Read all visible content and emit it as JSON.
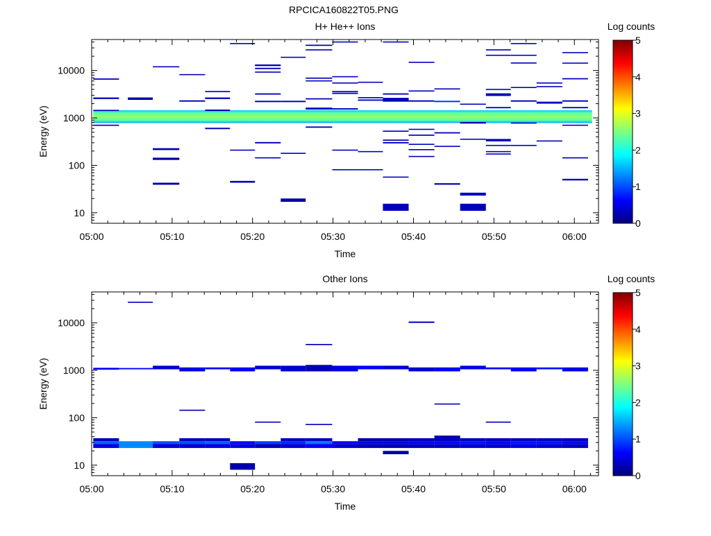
{
  "figure_title": "RPCICA160822T05.PNG",
  "palette": [
    "#00007f",
    "#0000ff",
    "#007fff",
    "#00ffff",
    "#7fff7f",
    "#ffff00",
    "#ff7f00",
    "#ff0000",
    "#7f0000"
  ],
  "chart_data": [
    {
      "type": "heatmap",
      "title": "H+ He++ Ions",
      "xlabel": "Time",
      "ylabel": "Energy (eV)",
      "x_ticks": [
        "05:00",
        "05:10",
        "05:20",
        "05:30",
        "05:40",
        "05:50",
        "06:00"
      ],
      "x_range_minutes": [
        0,
        63
      ],
      "y_scale": "log",
      "y_range": [
        6,
        45000
      ],
      "y_ticks": [
        "10",
        "100",
        "1000",
        "10000"
      ],
      "colorbar": {
        "label": "Log counts",
        "range": [
          0,
          5
        ],
        "ticks": [
          "0",
          "1",
          "2",
          "3",
          "4",
          "5"
        ]
      },
      "band": {
        "e_min": 780,
        "e_max": 1450,
        "value": 2.6,
        "t_start": 0.2,
        "t_end": 62.2
      },
      "cells": [
        [
          0.2,
          3.4,
          2500,
          2700,
          0.3
        ],
        [
          0.2,
          3.4,
          6400,
          6800,
          0.3
        ],
        [
          0.2,
          3.4,
          1400,
          1480,
          0.3
        ],
        [
          0.2,
          3.4,
          680,
          720,
          0.3
        ],
        [
          4.5,
          7.6,
          2400,
          2700,
          0.2
        ],
        [
          7.6,
          10.9,
          11800,
          12300,
          0.3
        ],
        [
          7.6,
          10.9,
          210,
          230,
          0.2
        ],
        [
          7.6,
          10.9,
          130,
          145,
          0.2
        ],
        [
          7.6,
          10.9,
          39,
          43,
          0.2
        ],
        [
          10.9,
          14.1,
          8000,
          8400,
          0.3
        ],
        [
          10.9,
          14.1,
          2200,
          2350,
          0.3
        ],
        [
          14.1,
          17.2,
          3500,
          3700,
          0.3
        ],
        [
          14.1,
          17.2,
          2500,
          2700,
          0.3
        ],
        [
          14.1,
          17.2,
          1400,
          1500,
          0.3
        ],
        [
          14.1,
          17.2,
          580,
          620,
          0.3
        ],
        [
          17.2,
          20.3,
          36000,
          38000,
          0.3
        ],
        [
          17.2,
          20.3,
          205,
          215,
          0.3
        ],
        [
          17.2,
          20.3,
          43,
          47,
          0.3
        ],
        [
          20.3,
          23.5,
          12400,
          13400,
          0.3
        ],
        [
          20.3,
          23.5,
          10700,
          11400,
          0.3
        ],
        [
          20.3,
          23.5,
          9000,
          9500,
          0.3
        ],
        [
          20.3,
          23.5,
          3100,
          3300,
          0.3
        ],
        [
          20.3,
          23.5,
          2150,
          2300,
          0.3
        ],
        [
          20.3,
          23.5,
          290,
          310,
          0.3
        ],
        [
          20.3,
          23.5,
          140,
          148,
          0.3
        ],
        [
          23.5,
          26.6,
          18500,
          19500,
          0.3
        ],
        [
          23.5,
          26.6,
          2150,
          2300,
          0.3
        ],
        [
          23.5,
          26.6,
          178,
          184,
          0.3
        ],
        [
          23.5,
          26.6,
          17,
          20,
          0.2
        ],
        [
          26.6,
          29.9,
          33000,
          35000,
          0.3
        ],
        [
          26.6,
          29.9,
          26500,
          28000,
          0.3
        ],
        [
          26.6,
          29.9,
          6700,
          7100,
          0.3
        ],
        [
          26.6,
          29.9,
          5900,
          6200,
          0.3
        ],
        [
          26.6,
          29.9,
          2450,
          2600,
          0.3
        ],
        [
          26.6,
          29.9,
          1500,
          1650,
          0.3
        ],
        [
          26.6,
          29.9,
          620,
          660,
          0.3
        ],
        [
          29.9,
          33.1,
          39000,
          41000,
          0.3
        ],
        [
          29.9,
          33.1,
          7200,
          7600,
          0.3
        ],
        [
          29.9,
          33.1,
          5300,
          5600,
          0.3
        ],
        [
          29.9,
          33.1,
          3500,
          3700,
          0.3
        ],
        [
          29.9,
          33.1,
          3200,
          3400,
          0.3
        ],
        [
          29.9,
          33.1,
          1500,
          1600,
          0.3
        ],
        [
          29.9,
          33.1,
          205,
          215,
          0.3
        ],
        [
          29.9,
          33.1,
          80,
          83,
          0.3
        ],
        [
          33.1,
          36.2,
          5500,
          5800,
          0.3
        ],
        [
          33.1,
          36.2,
          2600,
          2750,
          0.3
        ],
        [
          33.1,
          36.2,
          2300,
          2450,
          0.3
        ],
        [
          33.1,
          36.2,
          190,
          200,
          0.3
        ],
        [
          33.1,
          36.2,
          80,
          83,
          0.3
        ],
        [
          36.2,
          39.4,
          39000,
          41000,
          0.3
        ],
        [
          36.2,
          39.4,
          3100,
          3300,
          0.3
        ],
        [
          36.2,
          39.4,
          2200,
          2650,
          0.3
        ],
        [
          36.2,
          39.4,
          510,
          540,
          0.3
        ],
        [
          36.2,
          39.4,
          330,
          350,
          0.3
        ],
        [
          36.2,
          39.4,
          290,
          310,
          0.3
        ],
        [
          36.2,
          39.4,
          55,
          58,
          0.3
        ],
        [
          36.2,
          39.4,
          11,
          15.5,
          0.3
        ],
        [
          39.4,
          42.6,
          14500,
          15300,
          0.3
        ],
        [
          39.4,
          42.6,
          3600,
          3800,
          0.3
        ],
        [
          39.4,
          42.6,
          2200,
          2350,
          0.3
        ],
        [
          39.4,
          42.6,
          560,
          590,
          0.3
        ],
        [
          39.4,
          42.6,
          420,
          445,
          0.3
        ],
        [
          39.4,
          42.6,
          270,
          285,
          0.3
        ],
        [
          39.4,
          42.6,
          210,
          220,
          0.3
        ],
        [
          39.4,
          42.6,
          150,
          158,
          0.3
        ],
        [
          42.6,
          45.8,
          4000,
          4200,
          0.3
        ],
        [
          42.6,
          45.8,
          2150,
          2300,
          0.9
        ],
        [
          42.6,
          45.8,
          470,
          500,
          0.3
        ],
        [
          42.6,
          45.8,
          245,
          258,
          0.3
        ],
        [
          42.6,
          45.8,
          39,
          42,
          0.3
        ],
        [
          45.8,
          49.0,
          1900,
          2000,
          0.3
        ],
        [
          45.8,
          49.0,
          760,
          820,
          0.3
        ],
        [
          45.8,
          49.0,
          350,
          365,
          0.3
        ],
        [
          45.8,
          49.0,
          23,
          26.5,
          0.3
        ],
        [
          45.8,
          49.0,
          11,
          15.5,
          0.3
        ],
        [
          49.0,
          52.1,
          26500,
          28000,
          0.3
        ],
        [
          49.0,
          52.1,
          20500,
          21500,
          0.3
        ],
        [
          49.0,
          52.1,
          3900,
          4100,
          0.3
        ],
        [
          49.0,
          52.1,
          2900,
          3300,
          0.3
        ],
        [
          49.0,
          52.1,
          1600,
          1700,
          0.3
        ],
        [
          49.0,
          52.1,
          320,
          360,
          0.3
        ],
        [
          49.0,
          52.1,
          260,
          270,
          0.3
        ],
        [
          49.0,
          52.1,
          190,
          200,
          0.3
        ],
        [
          49.0,
          52.1,
          170,
          178,
          0.3
        ],
        [
          52.1,
          55.3,
          36000,
          38000,
          0.3
        ],
        [
          52.1,
          55.3,
          20500,
          21500,
          0.3
        ],
        [
          52.1,
          55.3,
          14000,
          14800,
          0.3
        ],
        [
          52.1,
          55.3,
          4300,
          4500,
          0.3
        ],
        [
          52.1,
          55.3,
          2200,
          2350,
          0.3
        ],
        [
          52.1,
          55.3,
          760,
          800,
          0.3
        ],
        [
          52.1,
          55.3,
          260,
          270,
          0.3
        ],
        [
          55.3,
          58.5,
          5300,
          5600,
          0.3
        ],
        [
          55.3,
          58.5,
          4500,
          4700,
          0.3
        ],
        [
          55.3,
          58.5,
          2000,
          2200,
          0.3
        ],
        [
          55.3,
          58.5,
          320,
          335,
          0.3
        ],
        [
          58.5,
          61.7,
          23500,
          24500,
          0.3
        ],
        [
          58.5,
          61.7,
          14000,
          14700,
          0.3
        ],
        [
          58.5,
          61.7,
          6500,
          6900,
          0.3
        ],
        [
          58.5,
          61.7,
          2200,
          2350,
          0.3
        ],
        [
          58.5,
          61.7,
          1600,
          1700,
          0.3
        ],
        [
          58.5,
          61.7,
          690,
          720,
          0.3
        ],
        [
          58.5,
          61.7,
          140,
          148,
          0.3
        ],
        [
          58.5,
          61.7,
          48,
          52,
          0.3
        ]
      ]
    },
    {
      "type": "heatmap",
      "title": "Other Ions",
      "xlabel": "Time",
      "ylabel": "Energy (eV)",
      "x_ticks": [
        "05:00",
        "05:10",
        "05:20",
        "05:30",
        "05:40",
        "05:50",
        "06:00"
      ],
      "x_range_minutes": [
        0,
        63
      ],
      "y_scale": "log",
      "y_range": [
        6,
        45000
      ],
      "y_ticks": [
        "10",
        "100",
        "1000",
        "10000"
      ],
      "colorbar": {
        "label": "Log counts",
        "range": [
          0,
          5
        ],
        "ticks": [
          "0",
          "1",
          "2",
          "3",
          "4",
          "5"
        ]
      },
      "cells": [
        [
          0.2,
          3.4,
          1030,
          1130,
          0.6
        ],
        [
          3.4,
          7.6,
          1050,
          1120,
          0.6
        ],
        [
          7.6,
          10.9,
          1050,
          1250,
          0.4
        ],
        [
          10.9,
          14.1,
          950,
          1150,
          0.5
        ],
        [
          14.1,
          17.2,
          1050,
          1150,
          0.6
        ],
        [
          17.2,
          20.3,
          950,
          1150,
          0.6
        ],
        [
          20.3,
          23.5,
          1050,
          1250,
          0.4
        ],
        [
          23.5,
          26.6,
          950,
          1250,
          0.4
        ],
        [
          26.6,
          29.9,
          950,
          1300,
          0.3
        ],
        [
          29.9,
          33.1,
          950,
          1250,
          0.5
        ],
        [
          33.1,
          36.2,
          1050,
          1250,
          0.6
        ],
        [
          36.2,
          39.4,
          1050,
          1250,
          0.4
        ],
        [
          39.4,
          42.6,
          950,
          1150,
          0.4
        ],
        [
          42.6,
          45.8,
          950,
          1150,
          0.6
        ],
        [
          45.8,
          49.0,
          1050,
          1250,
          0.5
        ],
        [
          49.0,
          52.1,
          1050,
          1150,
          0.6
        ],
        [
          52.1,
          55.3,
          950,
          1150,
          0.6
        ],
        [
          55.3,
          58.5,
          1050,
          1150,
          0.7
        ],
        [
          58.5,
          61.7,
          950,
          1150,
          0.5
        ],
        [
          4.5,
          7.6,
          26500,
          28000,
          0.3
        ],
        [
          10.9,
          14.1,
          140,
          148,
          0.3
        ],
        [
          20.3,
          23.5,
          80,
          83,
          0.3
        ],
        [
          26.6,
          29.9,
          3400,
          3600,
          0.3
        ],
        [
          26.6,
          29.9,
          70,
          74,
          0.3
        ],
        [
          39.4,
          42.6,
          10000,
          10700,
          0.3
        ],
        [
          42.6,
          45.8,
          190,
          200,
          0.3
        ],
        [
          49.0,
          52.1,
          80,
          83,
          0.3
        ],
        [
          0.2,
          3.4,
          32,
          37,
          0.3
        ],
        [
          0.2,
          3.4,
          28,
          32,
          1.1
        ],
        [
          0.2,
          3.4,
          23,
          28,
          0.5
        ],
        [
          3.4,
          7.6,
          23,
          32,
          1.3
        ],
        [
          7.6,
          10.9,
          28,
          32,
          1.0
        ],
        [
          7.6,
          10.9,
          23,
          28,
          0.4
        ],
        [
          10.9,
          14.1,
          32,
          37,
          0.3
        ],
        [
          10.9,
          14.1,
          28,
          32,
          1.0
        ],
        [
          10.9,
          14.1,
          23,
          28,
          0.4
        ],
        [
          14.1,
          17.2,
          32,
          37,
          0.3
        ],
        [
          14.1,
          17.2,
          28,
          32,
          1.1
        ],
        [
          14.1,
          17.2,
          23,
          28,
          0.5
        ],
        [
          17.2,
          20.3,
          28,
          32,
          0.6
        ],
        [
          17.2,
          20.3,
          23,
          28,
          0.5
        ],
        [
          17.2,
          20.3,
          8,
          11,
          0.2
        ],
        [
          20.3,
          23.5,
          28,
          32,
          0.9
        ],
        [
          20.3,
          23.5,
          23,
          28,
          0.3
        ],
        [
          23.5,
          26.6,
          32,
          37,
          0.3
        ],
        [
          23.5,
          26.6,
          28,
          32,
          0.8
        ],
        [
          23.5,
          26.6,
          23,
          28,
          0.4
        ],
        [
          26.6,
          29.9,
          32,
          37,
          0.3
        ],
        [
          26.6,
          29.9,
          28,
          32,
          1.2
        ],
        [
          26.6,
          29.9,
          23,
          28,
          0.6
        ],
        [
          29.9,
          33.1,
          28,
          32,
          0.6
        ],
        [
          29.9,
          33.1,
          23,
          28,
          0.4
        ],
        [
          33.1,
          36.2,
          32,
          37,
          0.2
        ],
        [
          33.1,
          36.2,
          28,
          32,
          0.5
        ],
        [
          33.1,
          36.2,
          23,
          28,
          0.3
        ],
        [
          36.2,
          39.4,
          32,
          37,
          0.2
        ],
        [
          36.2,
          39.4,
          28,
          32,
          0.5
        ],
        [
          36.2,
          39.4,
          23,
          28,
          0.3
        ],
        [
          36.2,
          39.4,
          17,
          20,
          0.2
        ],
        [
          39.4,
          42.6,
          32,
          37,
          0.3
        ],
        [
          39.4,
          42.6,
          28,
          32,
          0.6
        ],
        [
          39.4,
          42.6,
          23,
          28,
          0.3
        ],
        [
          42.6,
          45.8,
          37,
          42,
          0.2
        ],
        [
          42.6,
          45.8,
          32,
          37,
          0.3
        ],
        [
          42.6,
          45.8,
          28,
          32,
          0.6
        ],
        [
          42.6,
          45.8,
          23,
          28,
          0.3
        ],
        [
          45.8,
          49.0,
          32,
          37,
          0.3
        ],
        [
          45.8,
          49.0,
          28,
          32,
          0.7
        ],
        [
          45.8,
          49.0,
          23,
          28,
          0.4
        ],
        [
          49.0,
          52.1,
          32,
          37,
          0.3
        ],
        [
          49.0,
          52.1,
          28,
          32,
          0.6
        ],
        [
          49.0,
          52.1,
          23,
          28,
          0.4
        ],
        [
          52.1,
          55.3,
          32,
          37,
          0.3
        ],
        [
          52.1,
          55.3,
          28,
          32,
          0.7
        ],
        [
          52.1,
          55.3,
          23,
          28,
          0.5
        ],
        [
          55.3,
          58.5,
          32,
          37,
          0.3
        ],
        [
          55.3,
          58.5,
          28,
          32,
          0.7
        ],
        [
          55.3,
          58.5,
          23,
          28,
          0.4
        ],
        [
          58.5,
          61.7,
          32,
          37,
          0.3
        ],
        [
          58.5,
          61.7,
          28,
          32,
          0.6
        ],
        [
          58.5,
          61.7,
          23,
          28,
          0.3
        ]
      ]
    }
  ]
}
